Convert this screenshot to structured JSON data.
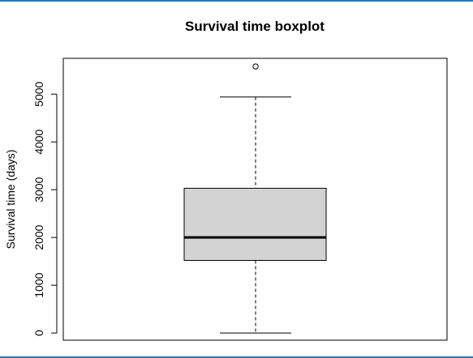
{
  "chart_data": {
    "type": "boxplot",
    "title": "Survival time boxplot",
    "xlabel": "",
    "ylabel": "Survival time (days)",
    "ylim": [
      -150,
      5750
    ],
    "yticks": [
      0,
      1000,
      2000,
      3000,
      4000,
      5000
    ],
    "ytick_labels": [
      "0",
      "1000",
      "2000",
      "3000",
      "4000",
      "5000"
    ],
    "grid": false,
    "legend": "none",
    "box": {
      "whisker_low": 0,
      "q1": 1520,
      "median": 2000,
      "q3": 3030,
      "whisker_high": 4940,
      "outliers": [
        5580
      ]
    },
    "colors": {
      "box_fill": "#d3d3d3",
      "stroke": "#000000",
      "frame_accent": "#2e75b6"
    }
  }
}
